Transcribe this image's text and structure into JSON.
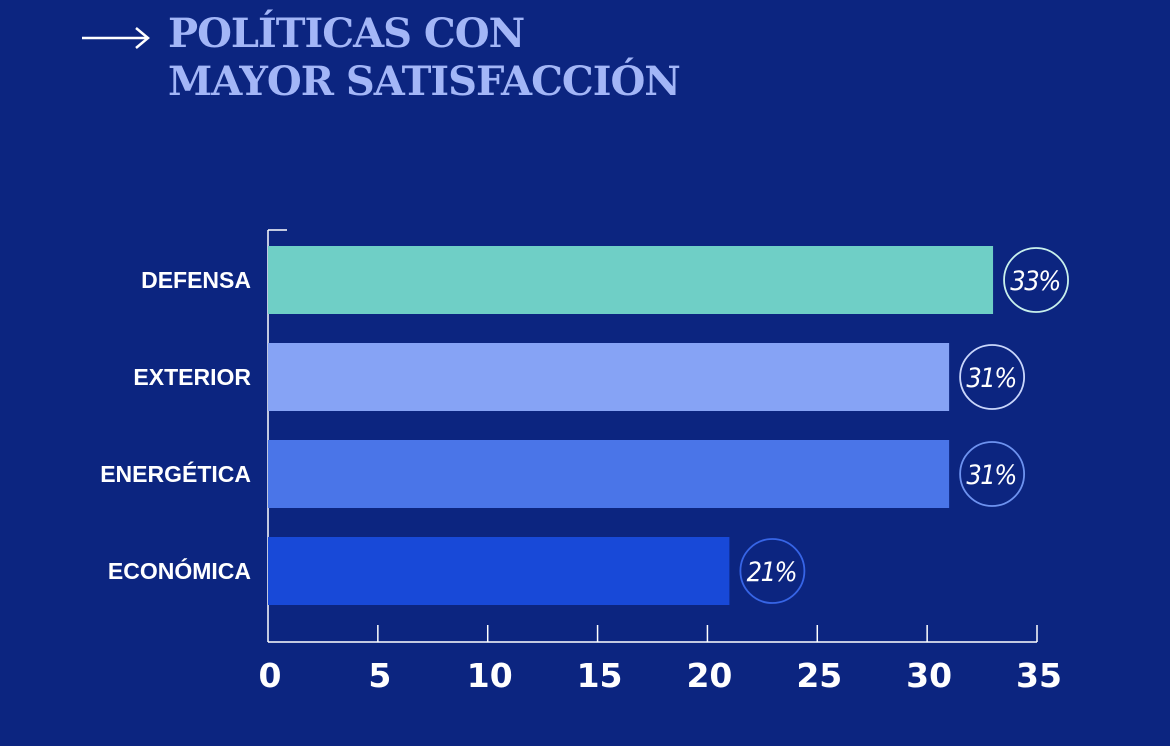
{
  "title": {
    "line1": "POLÍTICAS CON",
    "line2": "MAYOR SATISFACCIÓN"
  },
  "icons": {
    "title_arrow": "arrow-right-icon"
  },
  "colors": {
    "background": "#0c2580",
    "title": "#a3b6f7",
    "axis": "#ffffff"
  },
  "chart_data": {
    "type": "bar",
    "orientation": "horizontal",
    "categories": [
      "DEFENSA",
      "EXTERIOR",
      "ENERGÉTICA",
      "ECONÓMICA"
    ],
    "values": [
      33,
      31,
      31,
      21
    ],
    "value_labels": [
      "33%",
      "31%",
      "31%",
      "21%"
    ],
    "bar_colors": [
      "#6fcfc6",
      "#86a3f5",
      "#4a75e8",
      "#1849d8"
    ],
    "label_circle_colors": [
      "#c8f0ec",
      "#c9d6fb",
      "#6e93f0",
      "#3765e6"
    ],
    "xlim": [
      0,
      35
    ],
    "xticks": [
      0,
      5,
      10,
      15,
      20,
      25,
      30,
      35
    ],
    "xlabel": "",
    "ylabel": "",
    "grid": false
  }
}
